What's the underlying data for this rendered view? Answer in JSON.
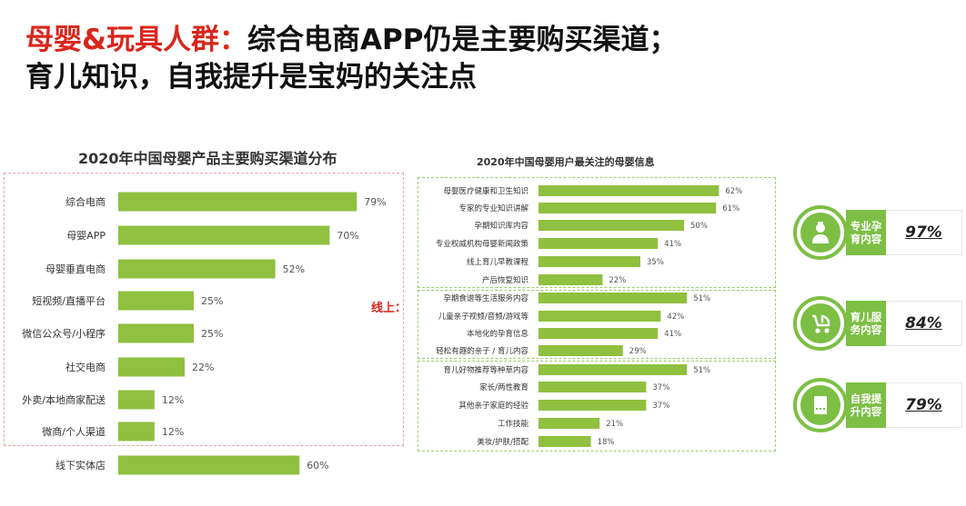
{
  "headline": {
    "red": "母婴&玩具人群：",
    "line1_rest": "综合电商APP仍是主要购买渠道；",
    "line2": "育儿知识，自我提升是宝妈的关注点"
  },
  "online_label": "线上：",
  "badges": [
    {
      "label": "专业孕育内容",
      "value": "97%",
      "icon": "nurse-icon"
    },
    {
      "label": "育儿服务内容",
      "value": "84%",
      "icon": "stroller-icon"
    },
    {
      "label": "自我提升内容",
      "value": "79%",
      "icon": "book-icon"
    }
  ],
  "colors": {
    "bar": "#8fc03f",
    "accent": "#d9261c",
    "badge": "#7cbf44"
  },
  "chart_data": [
    {
      "type": "bar",
      "orientation": "horizontal",
      "title": "2020年中国母婴产品主要购买渠道分布",
      "categories": [
        "综合电商",
        "母婴APP",
        "母婴垂直电商",
        "短视频/直播平台",
        "微信公众号/小程序",
        "社交电商",
        "外卖/本地商家配送",
        "微商/个人渠道",
        "线下实体店"
      ],
      "values": [
        79,
        70,
        52,
        25,
        25,
        22,
        12,
        12,
        60
      ],
      "value_labels": [
        "79%",
        "70%",
        "52%",
        "25%",
        "25%",
        "22%",
        "12%",
        "12%",
        "60%"
      ],
      "xlim": [
        0,
        100
      ],
      "grid": false
    },
    {
      "type": "bar",
      "orientation": "horizontal",
      "title": "2020年中国母婴用户最关注的母婴信息",
      "categories": [
        "母婴医疗健康和卫生知识",
        "专家的专业知识讲解",
        "孕期知识库内容",
        "专业权威机构母婴新闻政策",
        "线上育儿早教课程",
        "产后恢复知识",
        "孕期食谱等生活服务内容",
        "儿童亲子视频/音频/游戏等",
        "本地化的孕育信息",
        "轻松有趣的亲子 / 育儿内容",
        "育儿好物推荐等种草内容",
        "家长/两性教育",
        "其他亲子家庭的经验",
        "工作技能",
        "美妆/护肤/搭配"
      ],
      "values": [
        62,
        61,
        50,
        41,
        35,
        22,
        51,
        42,
        41,
        29,
        51,
        37,
        37,
        21,
        18
      ],
      "value_labels": [
        "62%",
        "61%",
        "50%",
        "41%",
        "35%",
        "22%",
        "51%",
        "42%",
        "41%",
        "29%",
        "51%",
        "37%",
        "37%",
        "21%",
        "18%"
      ],
      "groups": [
        [
          0,
          5
        ],
        [
          6,
          9
        ],
        [
          10,
          14
        ]
      ],
      "xlim": [
        0,
        100
      ],
      "grid": false
    }
  ]
}
